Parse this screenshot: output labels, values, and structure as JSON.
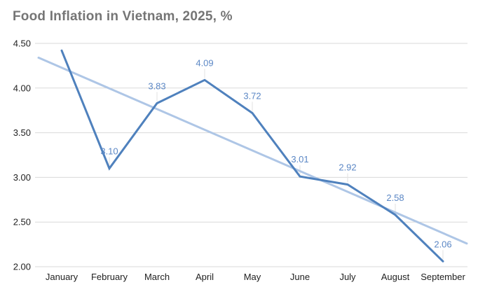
{
  "chart_data": {
    "type": "line",
    "title": "Food Inflation in Vietnam, 2025, %",
    "categories": [
      "January",
      "February",
      "March",
      "April",
      "May",
      "June",
      "July",
      "August",
      "September"
    ],
    "values": [
      4.42,
      3.1,
      3.83,
      4.09,
      3.72,
      3.01,
      2.92,
      2.58,
      2.06
    ],
    "point_labels": [
      "",
      "3.10",
      "3.83",
      "4.09",
      "3.72",
      "3.01",
      "2.92",
      "2.58",
      "2.06"
    ],
    "trendline": {
      "start_value": 4.34,
      "end_value": 2.26
    },
    "ylim": [
      2.0,
      4.5
    ],
    "yticks": [
      "2.00",
      "2.50",
      "3.00",
      "3.50",
      "4.00",
      "4.50"
    ],
    "xlabel": "",
    "ylabel": "",
    "grid": true,
    "legend": "none"
  },
  "colors": {
    "title": "#757575",
    "series_line": "#4f81bd",
    "trendline": "#aec6e6",
    "data_label": "#5b87c5",
    "gridline": "#d9d9d9",
    "leader_line": "#e0e0e0",
    "axis_label": "#1f1f1f",
    "background": "#ffffff"
  }
}
